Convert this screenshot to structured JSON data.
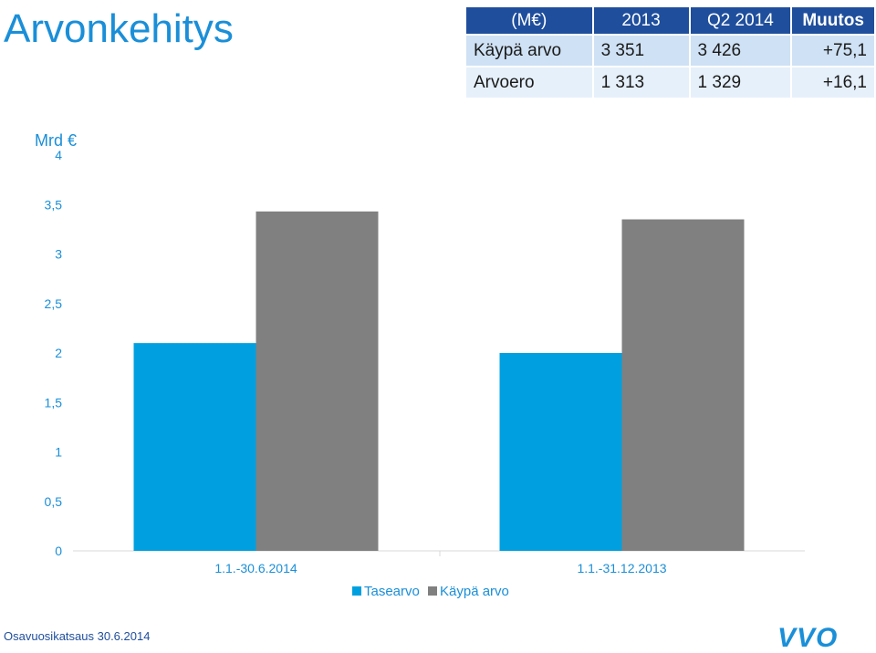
{
  "header": {
    "title": "Arvonkehitys"
  },
  "summary_table": {
    "headers": [
      "(M€)",
      "2013",
      "Q2 2014",
      "Muutos"
    ],
    "rows": [
      [
        "Käypä arvo",
        "3 351",
        "3 426",
        "+75,1"
      ],
      [
        "Arvoero",
        "1 313",
        "1 329",
        "+16,1"
      ]
    ]
  },
  "chart_data": {
    "type": "bar",
    "ylabel": "Mrd €",
    "ylim": [
      0,
      4
    ],
    "yticks": [
      "0",
      "0,5",
      "1",
      "1,5",
      "2",
      "2,5",
      "3",
      "3,5",
      "4"
    ],
    "categories": [
      "1.1.-30.6.2014",
      "1.1.-31.12.2013"
    ],
    "series": [
      {
        "name": "Tasearvo",
        "color": "#00a0e0",
        "values": [
          2.1,
          2.0
        ]
      },
      {
        "name": "Käypä arvo",
        "color": "#808080",
        "values": [
          3.43,
          3.35
        ]
      }
    ],
    "legend_position": "bottom"
  },
  "footer": {
    "text": "Osavuosikatsaus 30.6.2014",
    "logo_text": "VVO",
    "logo_color": "#1a8fd8"
  }
}
